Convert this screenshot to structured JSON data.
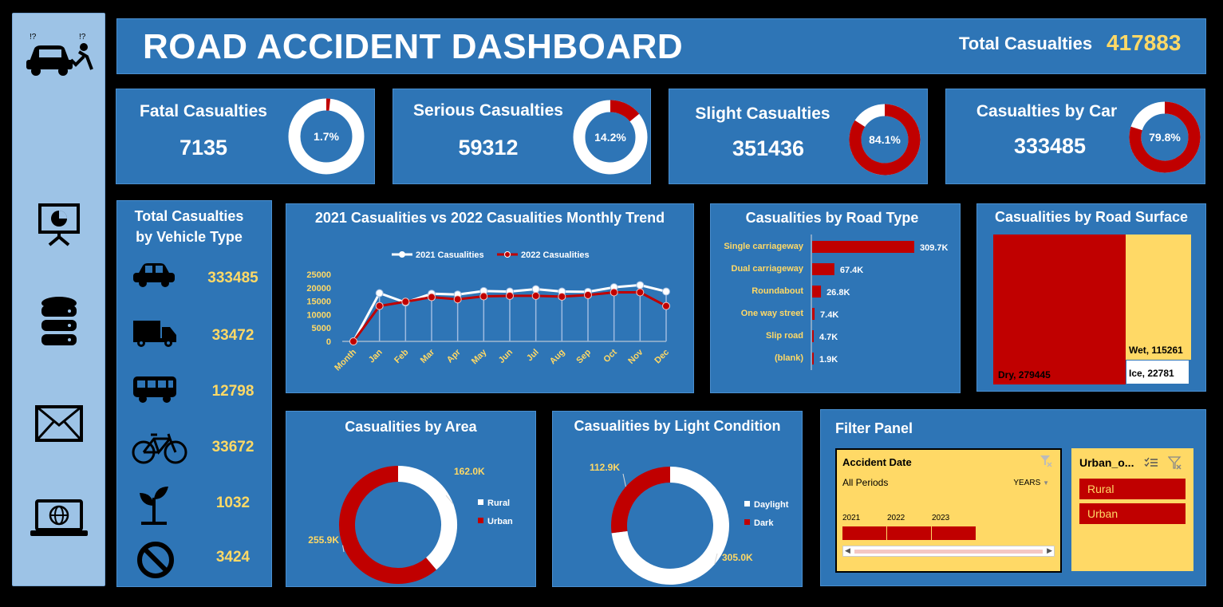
{
  "header": {
    "title": "ROAD ACCIDENT DASHBOARD",
    "total_label": "Total Casualties",
    "total_value": "417883"
  },
  "kpis": [
    {
      "label": "Fatal Casualties",
      "value": "7135",
      "pct_label": "1.7%",
      "pct": 1.7
    },
    {
      "label": "Serious Casualties",
      "value": "59312",
      "pct_label": "14.2%",
      "pct": 14.2
    },
    {
      "label": "Slight Casualties",
      "value": "351436",
      "pct_label": "84.1%",
      "pct": 84.1
    },
    {
      "label": "Casualties by Car",
      "value": "333485",
      "pct_label": "79.8%",
      "pct": 79.8
    }
  ],
  "vehicle": {
    "title_line1": "Total Casualties",
    "title_line2": "by Vehicle Type",
    "rows": [
      {
        "icon": "car-icon",
        "value": "333485"
      },
      {
        "icon": "truck-icon",
        "value": "33472"
      },
      {
        "icon": "bus-icon",
        "value": "12798"
      },
      {
        "icon": "bicycle-icon",
        "value": "33672"
      },
      {
        "icon": "plant-icon",
        "value": "1032"
      },
      {
        "icon": "no-entry-icon",
        "value": "3424"
      }
    ]
  },
  "colors": {
    "panel": "#2e75b6",
    "accent_red": "#c00000",
    "accent_yellow": "#ffd966",
    "sidebar": "#9dc3e6"
  },
  "sidebar_icons": [
    "accident-icon",
    "presentation-chart-icon",
    "database-icon",
    "mail-icon",
    "laptop-globe-icon"
  ],
  "chart_data": [
    {
      "type": "line",
      "title": "2021 Casualities vs 2022 Casualities Monthly Trend",
      "categories": [
        "Month",
        "Jan",
        "Feb",
        "Mar",
        "Apr",
        "May",
        "Jun",
        "Jul",
        "Aug",
        "Sep",
        "Oct",
        "Nov",
        "Dec"
      ],
      "series": [
        {
          "name": "2021 Casualities",
          "color": "#ffffff",
          "values": [
            0,
            18000,
            14500,
            17800,
            17500,
            18800,
            18600,
            19500,
            18600,
            18500,
            20200,
            21000,
            18600
          ]
        },
        {
          "name": "2022 Casualities",
          "color": "#c00000",
          "values": [
            0,
            13200,
            14800,
            16500,
            15700,
            16800,
            17000,
            17000,
            16700,
            17300,
            18300,
            18300,
            13200
          ]
        }
      ],
      "yticks": [
        "25000",
        "20000",
        "15000",
        "10000",
        "5000",
        "0"
      ],
      "ylim": [
        0,
        25000
      ]
    },
    {
      "type": "bar",
      "title": "Casualities by Road Type",
      "categories": [
        "Single carriageway",
        "Dual carriageway",
        "Roundabout",
        "One way street",
        "Slip road",
        "(blank)"
      ],
      "values": [
        309.7,
        67.4,
        26.8,
        7.4,
        4.7,
        1.9
      ],
      "labels": [
        "309.7K",
        "67.4K",
        "26.8K",
        "7.4K",
        "4.7K",
        "1.9K"
      ],
      "unit": "K"
    },
    {
      "type": "treemap",
      "title": "Casualities by Road Surface",
      "categories": [
        "Dry",
        "Wet",
        "Ice"
      ],
      "values": [
        279445,
        115261,
        22781
      ],
      "labels": [
        "Dry, 279445",
        "Wet, 115261",
        "Ice, 22781"
      ]
    },
    {
      "type": "pie",
      "title": "Casualities by Area",
      "categories": [
        "Rural",
        "Urban"
      ],
      "values": [
        162.0,
        255.9
      ],
      "labels": [
        "162.0K",
        "255.9K"
      ],
      "legend": "right"
    },
    {
      "type": "pie",
      "title": "Casualities by Light Condition",
      "categories": [
        "Daylight",
        "Dark"
      ],
      "values": [
        305.0,
        112.9
      ],
      "labels": [
        "305.0K",
        "112.9K"
      ],
      "legend": "right"
    }
  ],
  "filter": {
    "title": "Filter Panel",
    "date_slicer": {
      "title": "Accident Date",
      "period": "All Periods",
      "level": "YEARS",
      "years": [
        "2021",
        "2022",
        "2023"
      ]
    },
    "area_slicer": {
      "title": "Urban_o...",
      "items": [
        "Rural",
        "Urban"
      ]
    }
  }
}
